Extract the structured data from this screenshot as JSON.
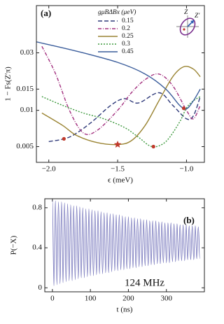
{
  "chart_data": [
    {
      "type": "line",
      "panel_label": "(a)",
      "x_label": "ϵ (meV)",
      "y_label": "1 − Fs(Z′π)",
      "log_y": true,
      "xlim": [
        -2.09,
        -0.87
      ],
      "ylim": [
        0.0037,
        0.074
      ],
      "xticks": [
        {
          "value": -2,
          "label": "−2.0"
        },
        {
          "value": -1.5,
          "label": "−1.5"
        },
        {
          "value": -1,
          "label": "−1.0"
        }
      ],
      "yticks": [
        0.005,
        0.01,
        0.015,
        0.03
      ],
      "legend_title": "gμBΔBx (μeV)",
      "legend": "top",
      "inset_labels": [
        "Z",
        "Z′"
      ],
      "series": [
        {
          "name": "0.15",
          "color": "#2f3a7a",
          "dash": "6,3",
          "x": [
            -2.0,
            -1.85,
            -1.7,
            -1.55,
            -1.45,
            -1.35,
            -1.2,
            -1.1,
            -1.0,
            -0.95,
            -0.9
          ],
          "values": [
            0.0055,
            0.006,
            0.0078,
            0.011,
            0.0125,
            0.0115,
            0.014,
            0.011,
            0.0085,
            0.009,
            0.013
          ]
        },
        {
          "name": "0.2",
          "color": "#a3307f",
          "dash": "5,2,1,2",
          "x": [
            -2.05,
            -1.95,
            -1.85,
            -1.75,
            -1.65,
            -1.5,
            -1.4,
            -1.3,
            -1.2,
            -1.1,
            -1.0,
            -0.95,
            -0.9
          ],
          "values": [
            0.034,
            0.02,
            0.01,
            0.0065,
            0.0068,
            0.01,
            0.014,
            0.018,
            0.02,
            0.016,
            0.01,
            0.0085,
            0.011
          ]
        },
        {
          "name": "0.25",
          "color": "#9a8433",
          "dash": "",
          "x": [
            -2.05,
            -1.9,
            -1.8,
            -1.65,
            -1.5,
            -1.4,
            -1.3,
            -1.2,
            -1.1,
            -1.02,
            -0.95,
            -0.9
          ],
          "values": [
            0.0095,
            0.0075,
            0.0062,
            0.0054,
            0.0052,
            0.0056,
            0.0075,
            0.012,
            0.019,
            0.023,
            0.022,
            0.019
          ]
        },
        {
          "name": "0.3",
          "color": "#3f9a3f",
          "dash": "2,2",
          "x": [
            -2.05,
            -1.9,
            -1.75,
            -1.6,
            -1.45,
            -1.35,
            -1.25,
            -1.15,
            -1.05,
            -1.0,
            -0.95,
            -0.9
          ],
          "values": [
            0.013,
            0.011,
            0.0095,
            0.0085,
            0.0072,
            0.006,
            0.005,
            0.0055,
            0.008,
            0.0105,
            0.012,
            0.013
          ]
        },
        {
          "name": "0.45",
          "color": "#3c5e9c",
          "dash": "",
          "x": [
            -2.09,
            -1.8,
            -1.5,
            -1.3,
            -1.15,
            -1.05,
            -1.0,
            -0.95,
            -0.9
          ],
          "values": [
            0.037,
            0.031,
            0.025,
            0.02,
            0.015,
            0.011,
            0.0103,
            0.012,
            0.015
          ]
        }
      ],
      "points": [
        {
          "x": -1.89,
          "value": 0.0058,
          "marker": "circle",
          "color": "#c0392b"
        },
        {
          "x": -1.5,
          "value": 0.0052,
          "marker": "star",
          "color": "#c0392b"
        },
        {
          "x": -1.24,
          "value": 0.005,
          "marker": "circle",
          "color": "#c0392b"
        },
        {
          "x": -1.02,
          "value": 0.0104,
          "marker": "circle",
          "color": "#c0392b"
        }
      ]
    },
    {
      "type": "oscillation",
      "panel_label": "(b)",
      "x_label": "t (ns)",
      "y_label": "P(−X)",
      "annotation": "124 MHz",
      "xlim": [
        -20,
        400
      ],
      "ylim": [
        -0.04,
        0.89
      ],
      "xticks": [
        0,
        100,
        200,
        300
      ],
      "yticks": [
        0,
        0.4,
        0.8
      ],
      "series": [
        {
          "color": "#4a4aa6",
          "x": [
            0,
            4,
            8,
            12,
            16,
            20,
            24,
            28,
            32,
            36,
            40,
            44,
            48,
            52,
            56,
            60,
            64,
            68,
            72,
            76,
            80,
            84,
            88,
            92,
            96,
            100,
            104,
            108,
            112,
            116,
            120,
            124,
            128,
            132,
            136,
            140,
            144,
            148,
            152,
            156,
            160,
            164,
            168,
            172,
            176,
            180,
            184,
            188,
            192,
            196,
            200,
            204,
            208,
            212,
            216,
            220,
            224,
            228,
            232,
            236,
            240,
            244,
            248,
            252,
            256,
            260,
            264,
            268,
            272,
            276,
            280,
            284,
            288,
            292,
            296,
            300,
            304,
            308,
            312,
            316,
            320,
            324,
            328,
            332,
            336,
            340,
            344,
            348,
            352,
            356,
            360,
            364,
            368,
            372,
            376,
            380,
            384,
            388
          ],
          "values": [
            0.88,
            0.02,
            0.87,
            0.03,
            0.86,
            0.04,
            0.86,
            0.05,
            0.85,
            0.06,
            0.84,
            0.07,
            0.83,
            0.07,
            0.82,
            0.08,
            0.82,
            0.09,
            0.81,
            0.1,
            0.8,
            0.1,
            0.79,
            0.11,
            0.79,
            0.12,
            0.78,
            0.12,
            0.77,
            0.13,
            0.77,
            0.14,
            0.76,
            0.14,
            0.75,
            0.15,
            0.75,
            0.15,
            0.74,
            0.16,
            0.74,
            0.17,
            0.73,
            0.17,
            0.73,
            0.18,
            0.72,
            0.18,
            0.71,
            0.19,
            0.71,
            0.19,
            0.7,
            0.2,
            0.7,
            0.2,
            0.69,
            0.21,
            0.69,
            0.21,
            0.68,
            0.22,
            0.68,
            0.22,
            0.67,
            0.23,
            0.67,
            0.23,
            0.67,
            0.24,
            0.66,
            0.24,
            0.66,
            0.25,
            0.65,
            0.25,
            0.65,
            0.25,
            0.65,
            0.26,
            0.64,
            0.26,
            0.64,
            0.27,
            0.63,
            0.27,
            0.63,
            0.27,
            0.63,
            0.28,
            0.62,
            0.28,
            0.62,
            0.28,
            0.62,
            0.29,
            0.61,
            0.29
          ]
        }
      ]
    }
  ]
}
